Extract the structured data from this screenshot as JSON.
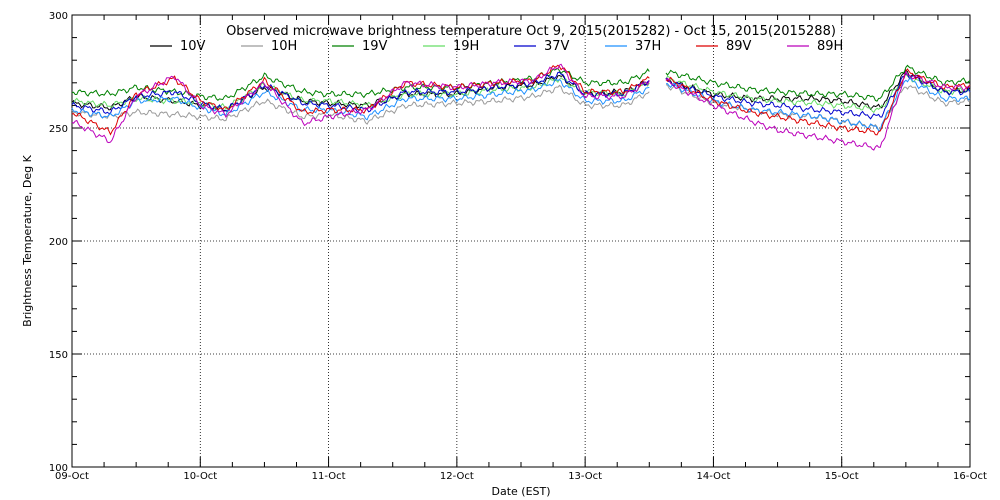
{
  "chart_data": {
    "type": "line",
    "title": "Observed microwave brightness temperature Oct  9, 2015(2015282) - Oct 15, 2015(2015288)",
    "xlabel": "Date (EST)",
    "ylabel": "Brightness Temperature, Deg K",
    "xlim": [
      0,
      7
    ],
    "ylim": [
      100,
      300
    ],
    "x_ticks": [
      {
        "label": "09-Oct",
        "value": 0
      },
      {
        "label": "10-Oct",
        "value": 1
      },
      {
        "label": "11-Oct",
        "value": 2
      },
      {
        "label": "12-Oct",
        "value": 3
      },
      {
        "label": "13-Oct",
        "value": 4
      },
      {
        "label": "14-Oct",
        "value": 5
      },
      {
        "label": "15-Oct",
        "value": 6
      },
      {
        "label": "16-Oct",
        "value": 7
      }
    ],
    "y_ticks": [
      {
        "label": "100",
        "value": 100
      },
      {
        "label": "150",
        "value": 150
      },
      {
        "label": "200",
        "value": 200
      },
      {
        "label": "250",
        "value": 250
      },
      {
        "label": "300",
        "value": 300
      }
    ],
    "grid": true,
    "legend_position": "top",
    "series": [
      {
        "name": "10V",
        "color": "#000000",
        "x": [
          0,
          0.3,
          0.5,
          0.8,
          1.0,
          1.2,
          1.5,
          1.8,
          2.0,
          2.3,
          2.6,
          3.0,
          3.3,
          3.6,
          3.8,
          4.0,
          4.3,
          4.5,
          null,
          4.63,
          5.0,
          5.3,
          5.5,
          5.8,
          6.0,
          6.3,
          6.5,
          6.8,
          7.0
        ],
        "values": [
          261,
          259,
          264,
          262,
          260,
          258,
          268,
          262,
          261,
          260,
          265,
          265,
          268,
          269,
          273,
          265,
          266,
          271,
          null,
          271,
          265,
          263,
          263,
          263,
          262,
          259,
          275,
          266,
          267
        ]
      },
      {
        "name": "10H",
        "color": "#9a9a9a",
        "x": [
          0,
          0.3,
          0.5,
          0.8,
          1.0,
          1.2,
          1.5,
          1.8,
          2.0,
          2.3,
          2.6,
          3.0,
          3.3,
          3.6,
          3.8,
          4.0,
          4.3,
          4.5,
          null,
          4.63,
          5.0,
          5.3,
          5.5,
          5.8,
          6.0,
          6.3,
          6.5,
          6.8,
          7.0
        ],
        "values": [
          257,
          255,
          257,
          256,
          255,
          254,
          262,
          255,
          256,
          253,
          260,
          261,
          262,
          264,
          268,
          260,
          260,
          266,
          null,
          269,
          261,
          258,
          256,
          255,
          253,
          250,
          269,
          261,
          262
        ]
      },
      {
        "name": "19V",
        "color": "#008000",
        "x": [
          0,
          0.3,
          0.5,
          0.8,
          1.0,
          1.2,
          1.5,
          1.8,
          2.0,
          2.3,
          2.6,
          3.0,
          3.3,
          3.6,
          3.8,
          4.0,
          4.3,
          4.5,
          null,
          4.63,
          5.0,
          5.3,
          5.5,
          5.8,
          6.0,
          6.3,
          6.5,
          6.8,
          7.0
        ],
        "values": [
          266,
          265,
          268,
          266,
          264,
          263,
          273,
          266,
          265,
          265,
          268,
          268,
          270,
          272,
          276,
          270,
          270,
          275,
          null,
          275,
          270,
          267,
          266,
          265,
          265,
          263,
          277,
          270,
          271
        ]
      },
      {
        "name": "19H",
        "color": "#66dd66",
        "x": [
          0,
          0.3,
          0.5,
          0.8,
          1.0,
          1.2,
          1.5,
          1.8,
          2.0,
          2.3,
          2.6,
          3.0,
          3.3,
          3.6,
          3.8,
          4.0,
          4.3,
          4.5,
          null,
          4.63,
          5.0,
          5.3,
          5.5,
          5.8,
          6.0,
          6.3,
          6.5,
          6.8,
          7.0
        ],
        "values": [
          262,
          260,
          263,
          262,
          261,
          259,
          269,
          262,
          262,
          260,
          265,
          265,
          267,
          268,
          272,
          266,
          265,
          270,
          null,
          272,
          266,
          263,
          262,
          261,
          260,
          258,
          273,
          266,
          267
        ]
      },
      {
        "name": "37V",
        "color": "#0000cc",
        "x": [
          0,
          0.3,
          0.5,
          0.8,
          1.0,
          1.2,
          1.5,
          1.8,
          2.0,
          2.3,
          2.6,
          3.0,
          3.3,
          3.6,
          3.8,
          4.0,
          4.3,
          4.5,
          null,
          4.63,
          5.0,
          5.3,
          5.5,
          5.8,
          6.0,
          6.3,
          6.5,
          6.8,
          7.0
        ],
        "values": [
          260,
          257,
          264,
          266,
          261,
          258,
          269,
          261,
          260,
          258,
          266,
          266,
          268,
          270,
          274,
          265,
          265,
          271,
          null,
          271,
          264,
          261,
          260,
          258,
          257,
          255,
          274,
          266,
          266
        ]
      },
      {
        "name": "37H",
        "color": "#1e90ff",
        "x": [
          0,
          0.3,
          0.5,
          0.8,
          1.0,
          1.2,
          1.5,
          1.8,
          2.0,
          2.3,
          2.6,
          3.0,
          3.3,
          3.6,
          3.8,
          4.0,
          4.3,
          4.5,
          null,
          4.63,
          5.0,
          5.3,
          5.5,
          5.8,
          6.0,
          6.3,
          6.5,
          6.8,
          7.0
        ],
        "values": [
          258,
          255,
          262,
          263,
          259,
          256,
          266,
          258,
          258,
          255,
          263,
          263,
          265,
          267,
          271,
          262,
          262,
          268,
          null,
          270,
          262,
          258,
          257,
          255,
          253,
          250,
          272,
          263,
          263
        ]
      },
      {
        "name": "89V",
        "color": "#dd0000",
        "x": [
          0,
          0.3,
          0.5,
          0.8,
          1.0,
          1.2,
          1.5,
          1.8,
          2.0,
          2.3,
          2.6,
          3.0,
          3.3,
          3.6,
          3.8,
          4.0,
          4.3,
          4.5,
          null,
          4.63,
          5.0,
          5.3,
          5.5,
          5.8,
          6.0,
          6.3,
          6.5,
          6.8,
          7.0
        ],
        "values": [
          257,
          248,
          265,
          272,
          262,
          258,
          271,
          257,
          258,
          258,
          270,
          268,
          270,
          271,
          278,
          266,
          266,
          272,
          null,
          272,
          262,
          257,
          255,
          252,
          250,
          248,
          275,
          268,
          269
        ]
      },
      {
        "name": "89H",
        "color": "#bb00bb",
        "x": [
          0,
          0.3,
          0.5,
          0.8,
          1.0,
          1.2,
          1.5,
          1.8,
          2.0,
          2.3,
          2.6,
          3.0,
          3.3,
          3.6,
          3.8,
          4.0,
          4.3,
          4.5,
          null,
          4.63,
          5.0,
          5.3,
          5.5,
          5.8,
          6.0,
          6.3,
          6.5,
          6.8,
          7.0
        ],
        "values": [
          253,
          244,
          264,
          273,
          260,
          256,
          270,
          252,
          255,
          258,
          270,
          268,
          270,
          271,
          278,
          264,
          264,
          271,
          null,
          271,
          260,
          253,
          249,
          246,
          244,
          241,
          274,
          268,
          268
        ]
      }
    ]
  }
}
